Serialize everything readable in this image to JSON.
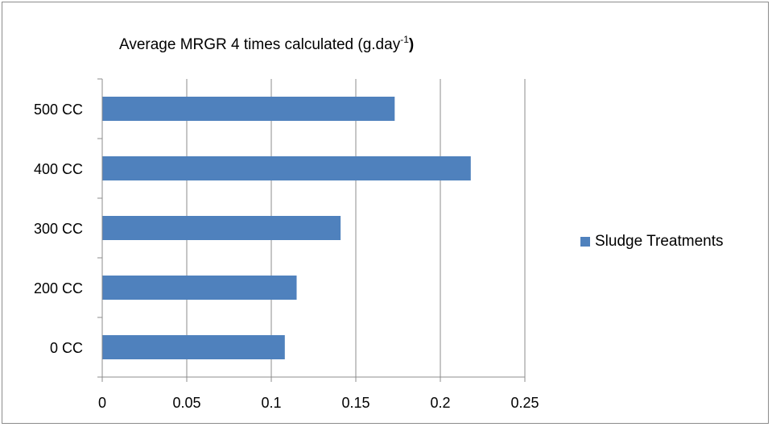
{
  "chart_data": {
    "type": "bar",
    "orientation": "horizontal",
    "title": "Average MRGR 4 times calculated (g.day",
    "title_superscript": "-1",
    "title_suffix": ")",
    "categories": [
      "0 CC",
      "200 CC",
      "300 CC",
      "400 CC",
      "500 CC"
    ],
    "series": [
      {
        "name": "Sludge Treatments",
        "values": [
          0.108,
          0.115,
          0.141,
          0.218,
          0.173
        ],
        "color": "#4f81bd"
      }
    ],
    "xlim": [
      0,
      0.25
    ],
    "xticks": [
      "0",
      "0.05",
      "0.1",
      "0.15",
      "0.2",
      "0.25"
    ],
    "grid": "vertical",
    "legend_position": "right"
  }
}
